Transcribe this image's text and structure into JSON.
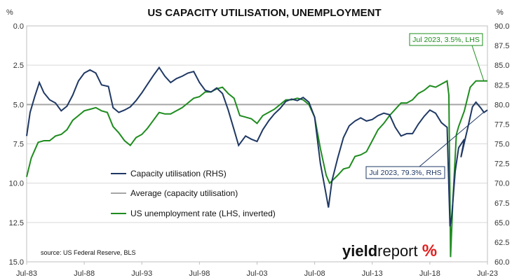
{
  "chart_data": {
    "type": "line",
    "title": "US CAPACITY UTILISATION, UNEMPLOYMENT",
    "left_axis": {
      "unit": "%",
      "range": [
        0.0,
        15.0
      ],
      "inverted": true,
      "ticks": [
        "0.0",
        "2.5",
        "5.0",
        "7.5",
        "10.0",
        "12.5",
        "15.0"
      ]
    },
    "right_axis": {
      "unit": "%",
      "range": [
        60.0,
        90.0
      ],
      "ticks": [
        "60.0",
        "62.5",
        "65.0",
        "67.5",
        "70.0",
        "72.5",
        "75.0",
        "77.5",
        "80.0",
        "82.5",
        "85.0",
        "87.5",
        "90.0"
      ]
    },
    "x_ticks": [
      "Jul-83",
      "Jul-88",
      "Jul-93",
      "Jul-98",
      "Jul-03",
      "Jul-08",
      "Jul-13",
      "Jul-18",
      "Jul-23"
    ],
    "x_range": [
      1983.5,
      2023.5
    ],
    "legend_position": "center-left",
    "series": [
      {
        "name": "Capacity utilisation (RHS)",
        "axis": "right",
        "color": "#1f3864",
        "points": [
          [
            1983.5,
            76
          ],
          [
            1983.8,
            79
          ],
          [
            1984.2,
            81
          ],
          [
            1984.6,
            82.8
          ],
          [
            1985.0,
            81.5
          ],
          [
            1985.5,
            80.6
          ],
          [
            1986.0,
            80.2
          ],
          [
            1986.5,
            79.2
          ],
          [
            1987.0,
            79.8
          ],
          [
            1987.5,
            81.2
          ],
          [
            1988.0,
            83.0
          ],
          [
            1988.5,
            84.0
          ],
          [
            1989.0,
            84.4
          ],
          [
            1989.5,
            84.0
          ],
          [
            1990.0,
            82.5
          ],
          [
            1990.6,
            82.3
          ],
          [
            1991.0,
            79.6
          ],
          [
            1991.5,
            79.0
          ],
          [
            1992.0,
            79.3
          ],
          [
            1992.5,
            79.7
          ],
          [
            1993.0,
            80.5
          ],
          [
            1993.5,
            81.5
          ],
          [
            1994.0,
            82.6
          ],
          [
            1994.5,
            83.7
          ],
          [
            1995.0,
            84.7
          ],
          [
            1995.5,
            83.6
          ],
          [
            1996.0,
            82.8
          ],
          [
            1996.5,
            83.3
          ],
          [
            1997.0,
            83.6
          ],
          [
            1997.5,
            84.0
          ],
          [
            1998.0,
            84.2
          ],
          [
            1998.5,
            82.8
          ],
          [
            1999.0,
            81.8
          ],
          [
            1999.5,
            81.6
          ],
          [
            2000.0,
            82.1
          ],
          [
            2000.5,
            81.4
          ],
          [
            2001.0,
            79.3
          ],
          [
            2001.5,
            76.8
          ],
          [
            2001.9,
            74.8
          ],
          [
            2002.5,
            76.0
          ],
          [
            2003.0,
            75.6
          ],
          [
            2003.5,
            75.3
          ],
          [
            2004.0,
            76.8
          ],
          [
            2004.5,
            77.9
          ],
          [
            2005.0,
            78.8
          ],
          [
            2005.5,
            79.5
          ],
          [
            2006.0,
            80.4
          ],
          [
            2006.5,
            80.7
          ],
          [
            2007.0,
            80.5
          ],
          [
            2007.5,
            80.9
          ],
          [
            2008.0,
            80.3
          ],
          [
            2008.5,
            78.4
          ],
          [
            2009.0,
            72.5
          ],
          [
            2009.5,
            68.5
          ],
          [
            2009.7,
            66.9
          ],
          [
            2010.0,
            70.3
          ],
          [
            2010.5,
            73.2
          ],
          [
            2011.0,
            75.8
          ],
          [
            2011.5,
            77.3
          ],
          [
            2012.0,
            77.9
          ],
          [
            2012.5,
            78.3
          ],
          [
            2013.0,
            77.9
          ],
          [
            2013.5,
            78.1
          ],
          [
            2014.0,
            78.6
          ],
          [
            2014.5,
            78.9
          ],
          [
            2015.0,
            78.7
          ],
          [
            2015.5,
            77.1
          ],
          [
            2016.0,
            76.0
          ],
          [
            2016.5,
            76.3
          ],
          [
            2017.0,
            76.3
          ],
          [
            2017.5,
            77.5
          ],
          [
            2018.0,
            78.5
          ],
          [
            2018.5,
            79.3
          ],
          [
            2019.0,
            78.9
          ],
          [
            2019.5,
            77.7
          ],
          [
            2020.0,
            77.1
          ],
          [
            2020.25,
            64.5
          ],
          [
            2020.4,
            65.8
          ],
          [
            2020.7,
            71.5
          ],
          [
            2021.0,
            74.5
          ],
          [
            2021.5,
            75.6
          ],
          [
            2021.2,
            73.3
          ],
          [
            2021.8,
            77.1
          ],
          [
            2022.2,
            79.7
          ],
          [
            2022.5,
            80.3
          ],
          [
            2022.9,
            79.6
          ],
          [
            2023.2,
            79.0
          ],
          [
            2023.5,
            79.3
          ]
        ]
      },
      {
        "name": "Average (capacity utilisation)",
        "axis": "right",
        "color": "#a6a6a6",
        "value": 80.0
      },
      {
        "name": "US unemployment rate (LHS, inverted)",
        "axis": "left",
        "color": "#1e8c1e",
        "points": [
          [
            1983.5,
            9.6
          ],
          [
            1983.9,
            8.4
          ],
          [
            1984.5,
            7.4
          ],
          [
            1985.0,
            7.3
          ],
          [
            1985.5,
            7.3
          ],
          [
            1986.0,
            7.0
          ],
          [
            1986.5,
            6.9
          ],
          [
            1987.0,
            6.6
          ],
          [
            1987.5,
            6.0
          ],
          [
            1988.0,
            5.7
          ],
          [
            1988.5,
            5.4
          ],
          [
            1989.0,
            5.3
          ],
          [
            1989.5,
            5.2
          ],
          [
            1990.0,
            5.4
          ],
          [
            1990.5,
            5.5
          ],
          [
            1991.0,
            6.4
          ],
          [
            1991.5,
            6.8
          ],
          [
            1992.0,
            7.3
          ],
          [
            1992.5,
            7.6
          ],
          [
            1993.0,
            7.1
          ],
          [
            1993.5,
            6.9
          ],
          [
            1994.0,
            6.5
          ],
          [
            1994.5,
            6.0
          ],
          [
            1995.0,
            5.5
          ],
          [
            1995.5,
            5.6
          ],
          [
            1996.0,
            5.6
          ],
          [
            1996.5,
            5.4
          ],
          [
            1997.0,
            5.2
          ],
          [
            1997.5,
            4.9
          ],
          [
            1998.0,
            4.6
          ],
          [
            1998.5,
            4.5
          ],
          [
            1999.0,
            4.2
          ],
          [
            1999.5,
            4.2
          ],
          [
            2000.0,
            4.0
          ],
          [
            2000.5,
            3.9
          ],
          [
            2001.0,
            4.3
          ],
          [
            2001.5,
            4.6
          ],
          [
            2002.0,
            5.7
          ],
          [
            2002.5,
            5.8
          ],
          [
            2003.0,
            5.9
          ],
          [
            2003.5,
            6.2
          ],
          [
            2004.0,
            5.7
          ],
          [
            2004.5,
            5.5
          ],
          [
            2005.0,
            5.3
          ],
          [
            2005.5,
            5.0
          ],
          [
            2006.0,
            4.7
          ],
          [
            2006.5,
            4.7
          ],
          [
            2007.0,
            4.6
          ],
          [
            2007.5,
            4.7
          ],
          [
            2008.0,
            5.0
          ],
          [
            2008.5,
            5.8
          ],
          [
            2009.0,
            7.8
          ],
          [
            2009.5,
            9.5
          ],
          [
            2009.8,
            10.0
          ],
          [
            2010.5,
            9.5
          ],
          [
            2011.0,
            9.1
          ],
          [
            2011.5,
            9.0
          ],
          [
            2012.0,
            8.3
          ],
          [
            2012.5,
            8.2
          ],
          [
            2013.0,
            8.0
          ],
          [
            2013.5,
            7.3
          ],
          [
            2014.0,
            6.6
          ],
          [
            2014.5,
            6.2
          ],
          [
            2015.0,
            5.7
          ],
          [
            2015.5,
            5.3
          ],
          [
            2016.0,
            4.9
          ],
          [
            2016.5,
            4.9
          ],
          [
            2017.0,
            4.7
          ],
          [
            2017.5,
            4.3
          ],
          [
            2018.0,
            4.1
          ],
          [
            2018.5,
            3.8
          ],
          [
            2019.0,
            3.9
          ],
          [
            2019.5,
            3.7
          ],
          [
            2020.0,
            3.5
          ],
          [
            2020.15,
            4.4
          ],
          [
            2020.3,
            14.7
          ],
          [
            2020.5,
            11.1
          ],
          [
            2020.8,
            6.9
          ],
          [
            2021.0,
            6.4
          ],
          [
            2021.5,
            5.4
          ],
          [
            2022.0,
            3.9
          ],
          [
            2022.5,
            3.5
          ],
          [
            2023.0,
            3.5
          ],
          [
            2023.5,
            3.5
          ]
        ]
      }
    ],
    "annotations": [
      {
        "text": "Jul 2023, 3.5%, LHS",
        "color": "#1e8c1e"
      },
      {
        "text": "Jul 2023, 79.3%, RHS",
        "color": "#1f3864"
      }
    ],
    "source": "source: US Federal Reserve, BLS",
    "logo": "yieldreport %"
  },
  "colors": {
    "grid": "#d9d9d9",
    "axis": "#bfbfbf",
    "logo_pct": "#e02020"
  }
}
